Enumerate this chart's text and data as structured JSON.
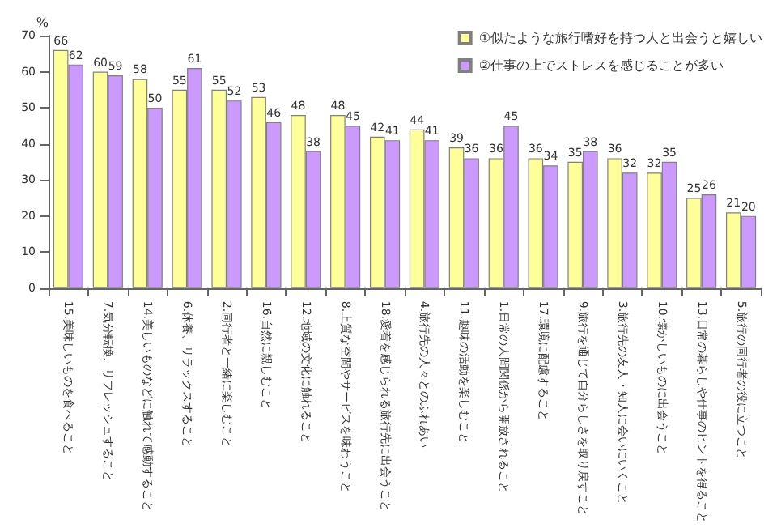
{
  "chart_data": {
    "type": "bar",
    "ylabel": "%",
    "categories": [
      "15.美味しいものを食べること",
      "7.気分転換、リフレッシュすること",
      "14.美しいものなどに触れて感動すること",
      "6.休養、リラックスすること",
      "2.同行者と一緒に楽しむこと",
      "16.自然に親しむこと",
      "12.地域の文化に触れること",
      "8.上質な空間やサービスを味わうこと",
      "18.愛着を感じられる旅行先に出会うこと",
      "4.旅行先の人々とのふれあい",
      "11.趣味の活動を楽しむこと",
      "1.日常の人間関係から開放されること",
      "17.環境に配慮すること",
      "9.旅行を通じて自分らしさを取り戻すこと",
      "3.旅行先の友人・知人に会いにいくこと",
      "10.懐かしいものに出会うこと",
      "13.日常の暮らしや仕事のヒントを得ること",
      "5.旅行の同行者の役に立つこと"
    ],
    "series": [
      {
        "name": "①似たような旅行嗜好を持つ人と出会うと嬉しい",
        "color": "#ffff99",
        "values": [
          66,
          60,
          58,
          55,
          55,
          53,
          48,
          48,
          42,
          44,
          39,
          36,
          36,
          35,
          36,
          32,
          25,
          21
        ]
      },
      {
        "name": "②仕事の上でストレスを感じることが多い",
        "color": "#cc99ff",
        "values": [
          62,
          59,
          50,
          61,
          52,
          46,
          38,
          45,
          41,
          41,
          36,
          45,
          34,
          38,
          32,
          35,
          26,
          20
        ]
      }
    ],
    "ylim": [
      0,
      70
    ],
    "yticks": [
      0,
      10,
      20,
      30,
      40,
      50,
      60,
      70
    ],
    "grid": false,
    "legend": "top right",
    "data_labels": true
  }
}
